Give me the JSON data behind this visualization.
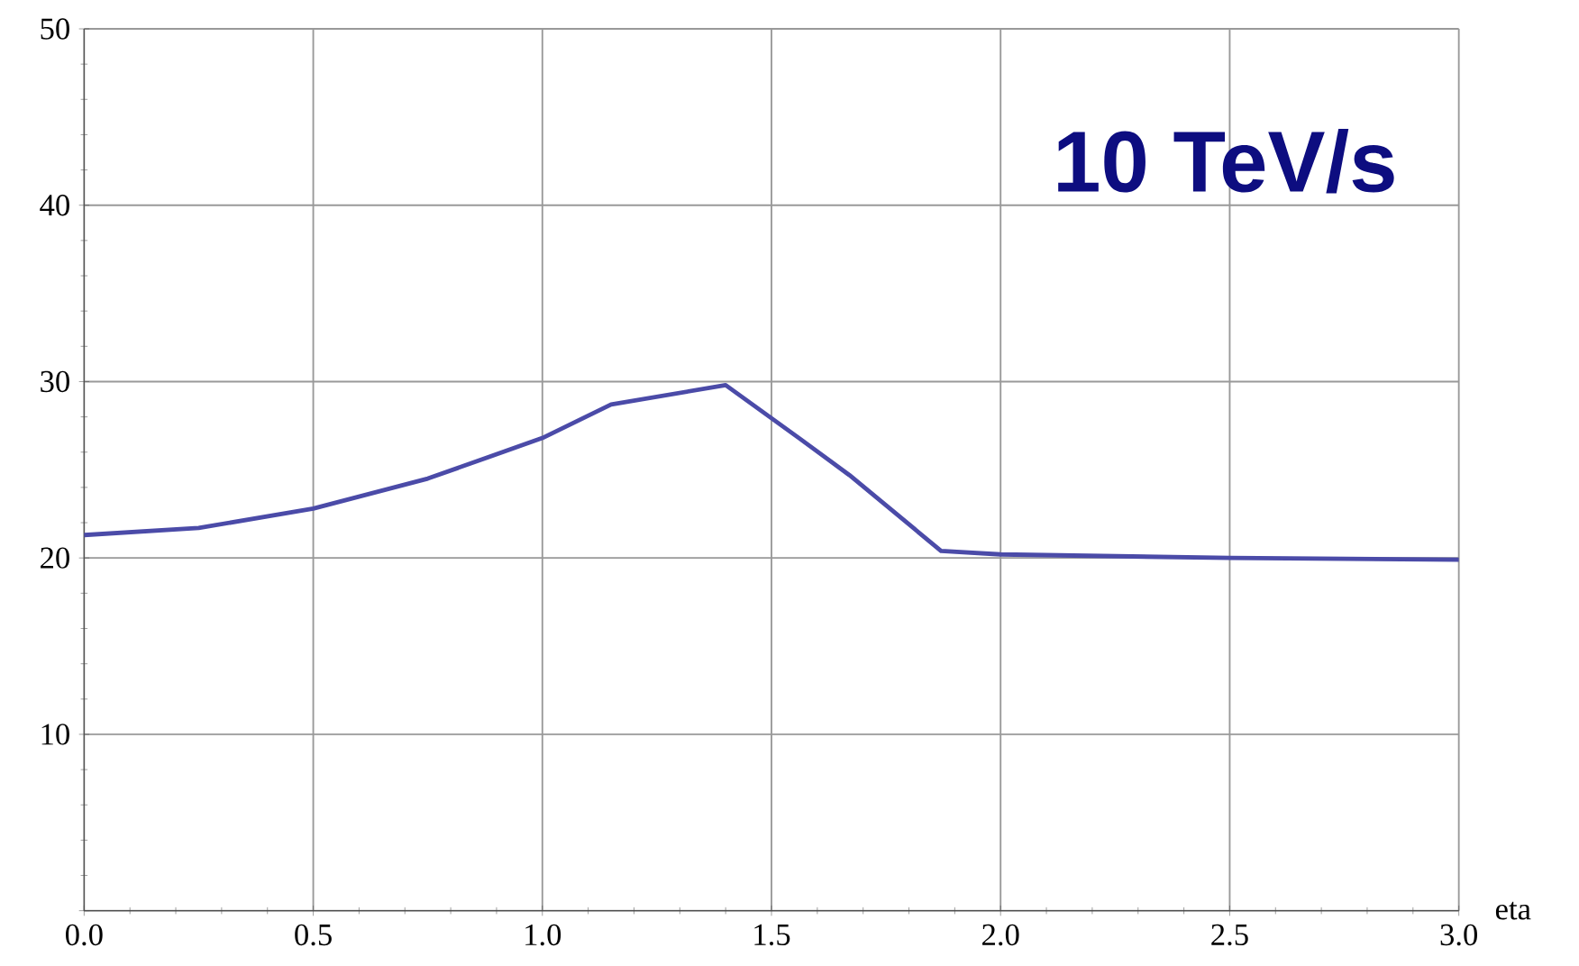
{
  "chart_data": {
    "type": "line",
    "xlabel": "eta",
    "annotations": [
      "10 TeV/s"
    ],
    "x": [
      0,
      0.25,
      0.5,
      0.75,
      1.0,
      1.15,
      1.4,
      1.56,
      1.67,
      1.87,
      2.0,
      2.5,
      3.0
    ],
    "series": [
      {
        "color": "#4b4ba8",
        "values": [
          21.3,
          21.7,
          22.8,
          24.5,
          26.8,
          28.7,
          29.8,
          26.8,
          24.7,
          20.4,
          20.2,
          20.0,
          19.9
        ]
      }
    ],
    "xlim": [
      0,
      3
    ],
    "ylim": [
      0,
      50
    ],
    "xticks": [
      {
        "value": 0,
        "label": "0.0"
      },
      0.5,
      {
        "value": 1,
        "label": "1.0"
      },
      1.5,
      {
        "value": 2,
        "label": "2.0"
      },
      2.5,
      {
        "value": 3,
        "label": "3.0"
      }
    ],
    "yticks": [
      {
        "value": 0,
        "label": null
      },
      10,
      20,
      30,
      40,
      50
    ],
    "grid": true,
    "marker": "none",
    "line_style": "solid"
  }
}
